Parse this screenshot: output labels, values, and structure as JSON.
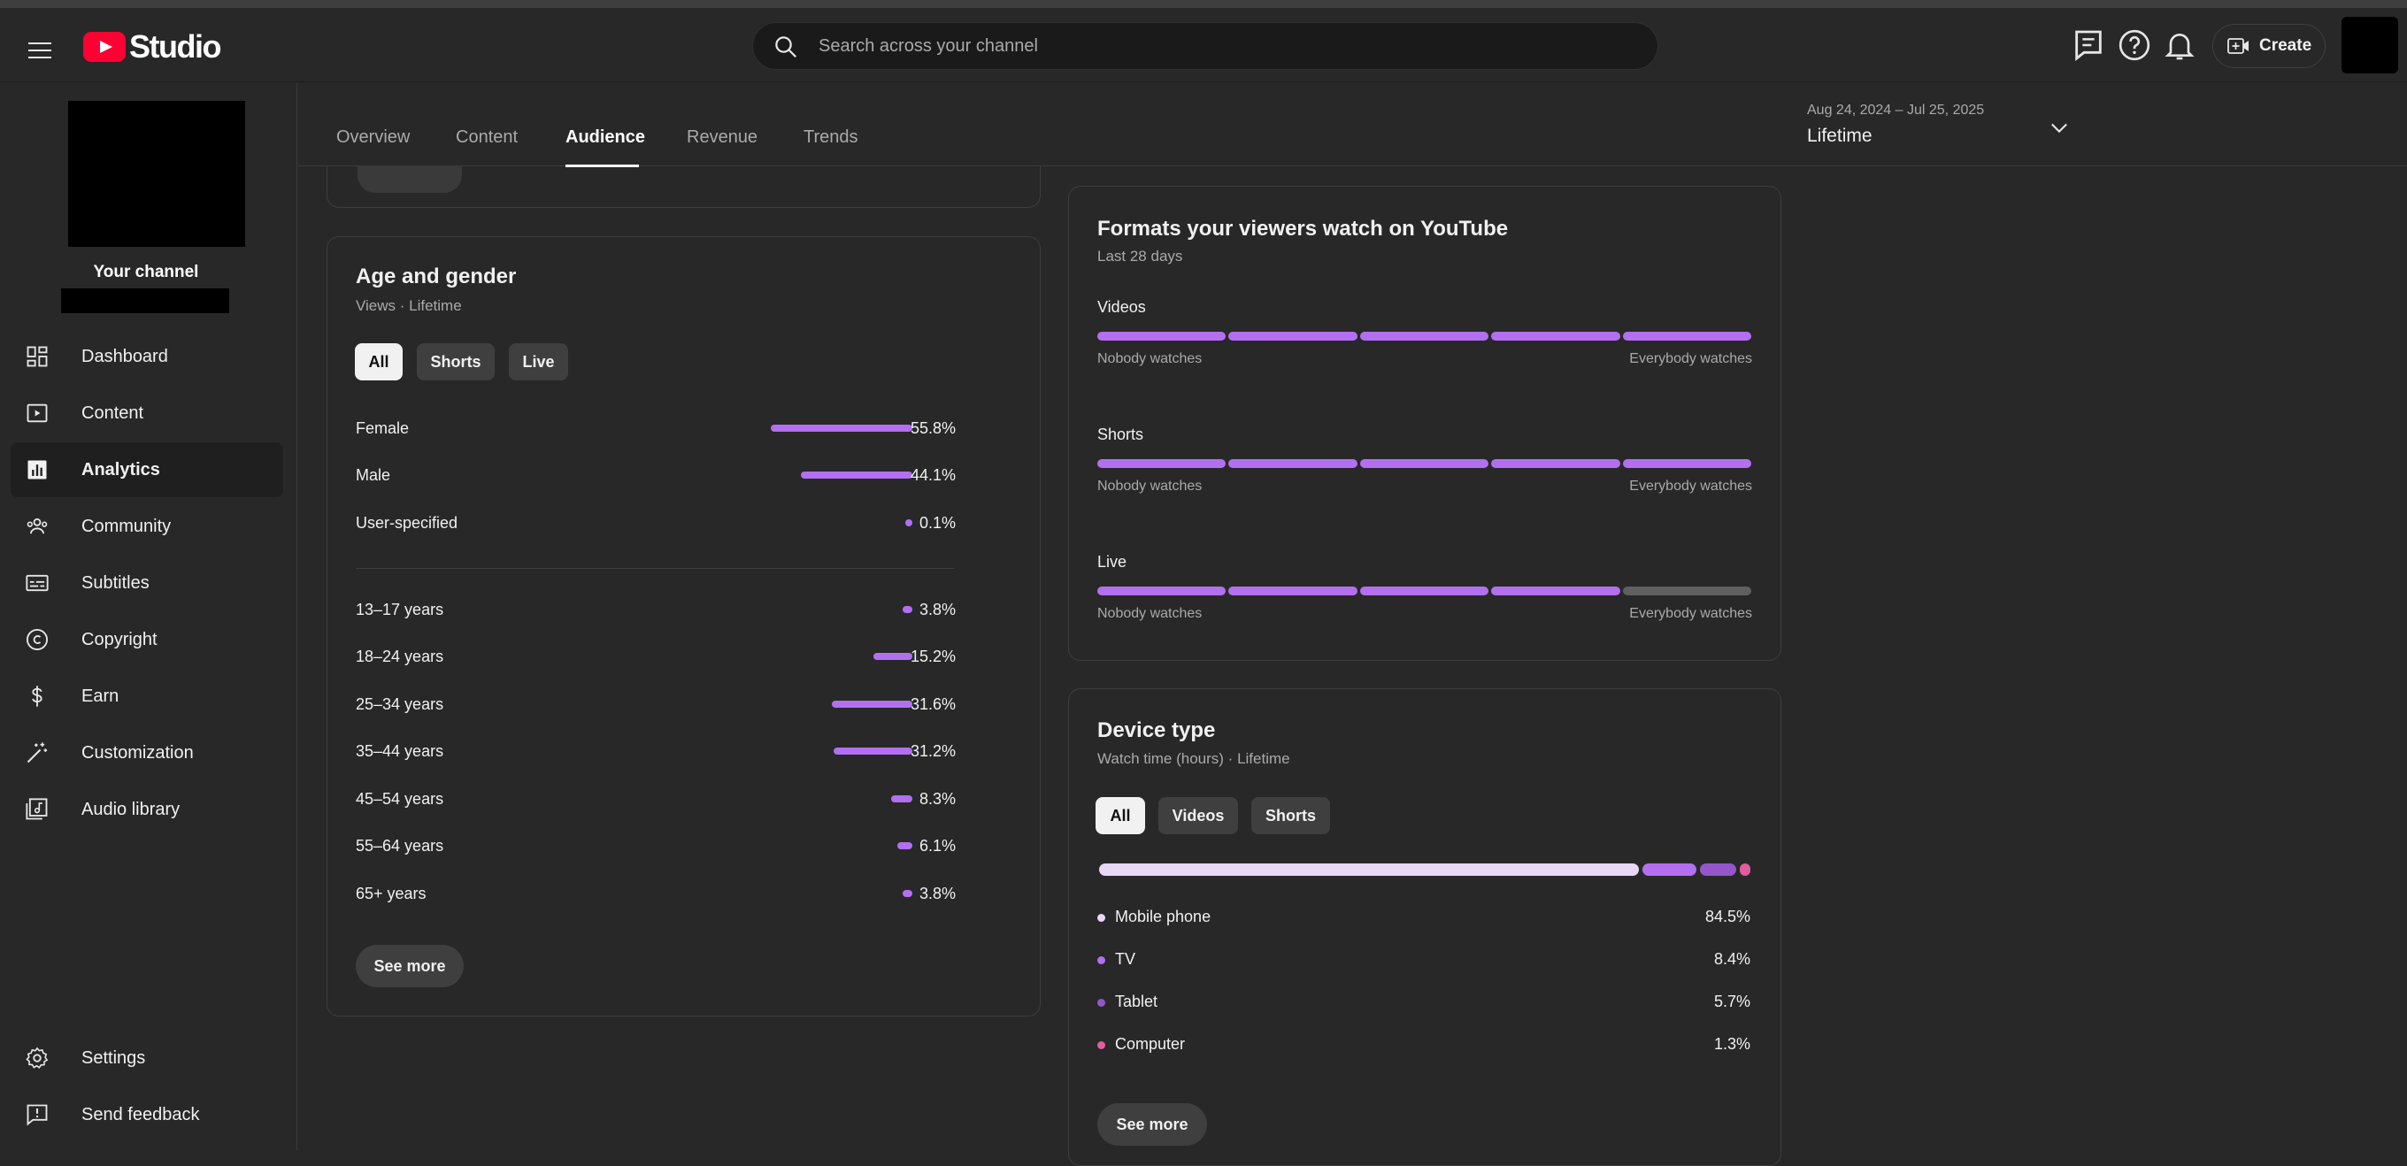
{
  "header": {
    "logo_text": "Studio",
    "search_placeholder": "Search across your channel",
    "create_label": "Create"
  },
  "sidebar": {
    "channel_title": "Your channel",
    "items": [
      {
        "label": "Dashboard",
        "icon": "dashboard-icon"
      },
      {
        "label": "Content",
        "icon": "content-icon"
      },
      {
        "label": "Analytics",
        "icon": "analytics-icon",
        "active": true
      },
      {
        "label": "Community",
        "icon": "community-icon"
      },
      {
        "label": "Subtitles",
        "icon": "subtitles-icon"
      },
      {
        "label": "Copyright",
        "icon": "copyright-icon"
      },
      {
        "label": "Earn",
        "icon": "dollar-icon"
      },
      {
        "label": "Customization",
        "icon": "magic-wand-icon"
      },
      {
        "label": "Audio library",
        "icon": "audio-library-icon"
      }
    ],
    "bottom_items": [
      {
        "label": "Settings",
        "icon": "gear-icon"
      },
      {
        "label": "Send feedback",
        "icon": "feedback-icon"
      }
    ]
  },
  "tabs": {
    "items": [
      "Overview",
      "Content",
      "Audience",
      "Revenue",
      "Trends"
    ],
    "active": "Audience",
    "date_range": "Aug 24, 2024 – Jul 25, 2025",
    "period": "Lifetime"
  },
  "age_gender": {
    "title": "Age and gender",
    "subtitle": "Views · Lifetime",
    "chips": [
      "All",
      "Shorts",
      "Live"
    ],
    "selected_chip": "All",
    "gender": [
      {
        "label": "Female",
        "value": "55.8%",
        "pct": 55.8
      },
      {
        "label": "Male",
        "value": "44.1%",
        "pct": 44.1
      },
      {
        "label": "User-specified",
        "value": "0.1%",
        "pct": 0.1
      }
    ],
    "age": [
      {
        "label": "13–17 years",
        "value": "3.8%",
        "pct": 3.8
      },
      {
        "label": "18–24 years",
        "value": "15.2%",
        "pct": 15.2
      },
      {
        "label": "25–34 years",
        "value": "31.6%",
        "pct": 31.6
      },
      {
        "label": "35–44 years",
        "value": "31.2%",
        "pct": 31.2
      },
      {
        "label": "45–54 years",
        "value": "8.3%",
        "pct": 8.3
      },
      {
        "label": "55–64 years",
        "value": "6.1%",
        "pct": 6.1
      },
      {
        "label": "65+ years",
        "value": "3.8%",
        "pct": 3.8
      }
    ],
    "see_more": "See more",
    "bar_color": "#b36ff0"
  },
  "formats": {
    "title": "Formats your viewers watch on YouTube",
    "subtitle": "Last 28 days",
    "left_label": "Nobody watches",
    "right_label": "Everybody watches",
    "rows": [
      {
        "label": "Videos",
        "level": 5,
        "of": 5
      },
      {
        "label": "Shorts",
        "level": 5,
        "of": 5
      },
      {
        "label": "Live",
        "level": 4,
        "of": 5
      }
    ]
  },
  "device": {
    "title": "Device type",
    "subtitle": "Watch time (hours) · Lifetime",
    "chips": [
      "All",
      "Videos",
      "Shorts"
    ],
    "selected_chip": "All",
    "rows": [
      {
        "label": "Mobile phone",
        "value": "84.5%",
        "pct": 84.5,
        "color": "#e8d8f6"
      },
      {
        "label": "TV",
        "value": "8.4%",
        "pct": 8.4,
        "color": "#b36ff0"
      },
      {
        "label": "Tablet",
        "value": "5.7%",
        "pct": 5.7,
        "color": "#9556c9"
      },
      {
        "label": "Computer",
        "value": "1.3%",
        "pct": 1.3,
        "color": "#e05d9e"
      }
    ],
    "see_more": "See more"
  }
}
